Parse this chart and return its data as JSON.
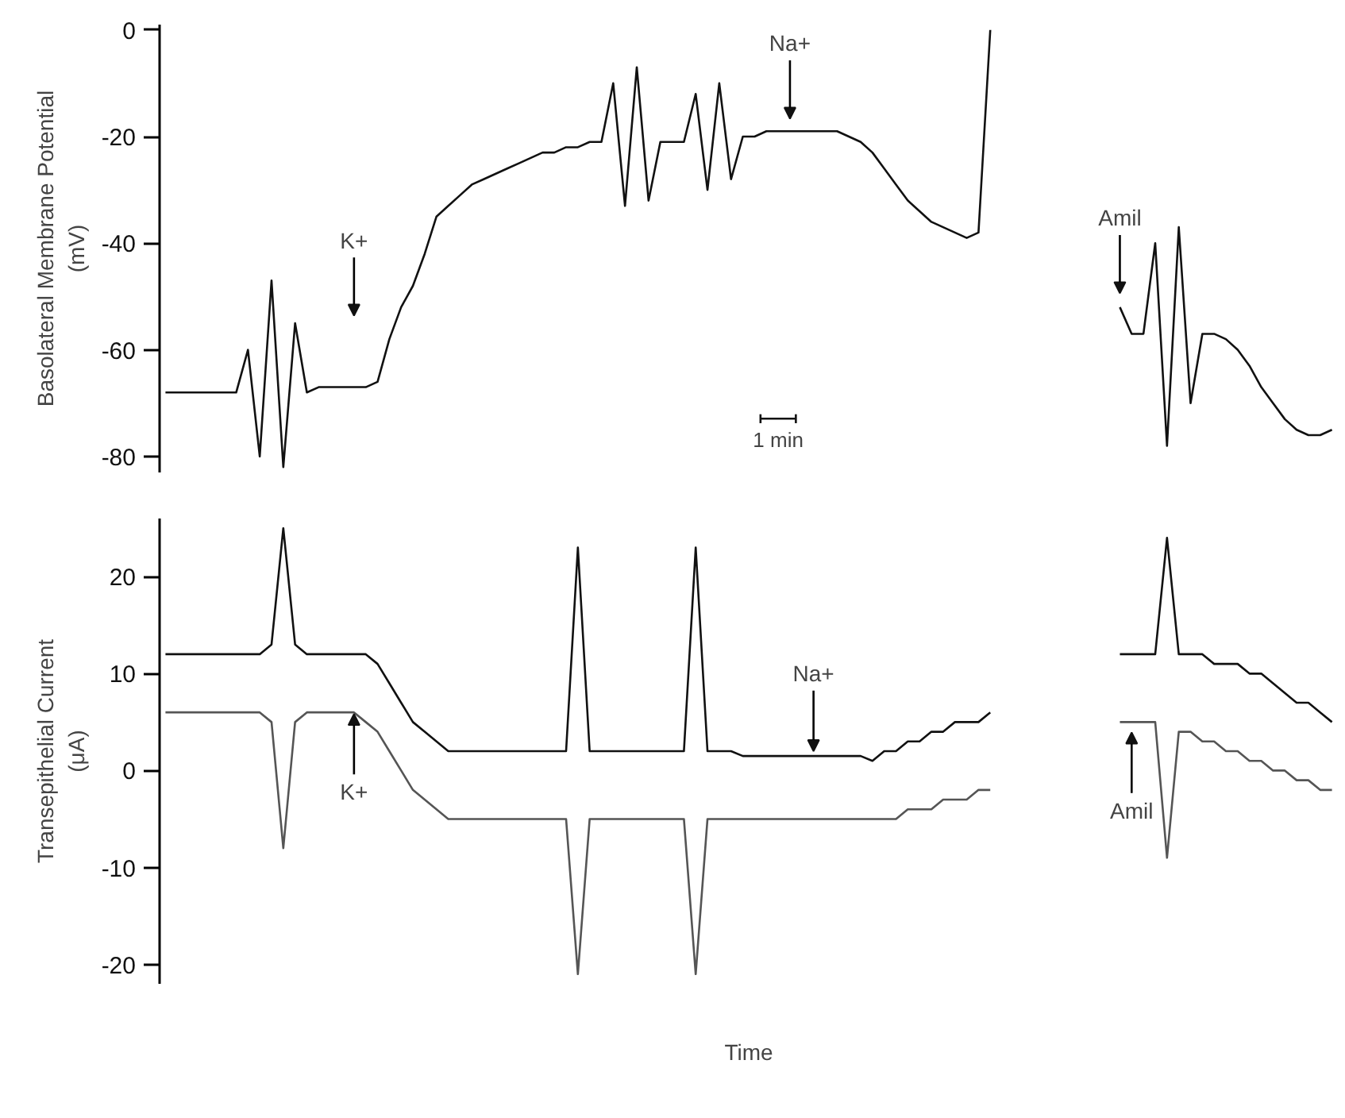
{
  "chart_data": [
    {
      "type": "line",
      "ylabel": "Basolateral Membrane Potential\n(mV)",
      "tick_labels": "y",
      "grid": false,
      "categories": [
        null,
        null,
        null,
        null,
        null,
        null,
        null,
        null,
        null,
        null,
        null,
        null,
        null,
        null,
        null,
        null,
        null,
        null,
        null,
        null,
        null,
        null,
        null,
        null,
        null,
        null,
        null,
        null,
        null,
        null,
        null,
        null,
        null,
        null,
        null,
        null,
        null,
        null,
        null,
        null,
        null,
        null,
        null,
        null,
        null,
        null,
        null,
        null,
        null,
        null,
        null,
        null,
        null,
        null,
        null,
        null,
        null,
        null,
        null,
        null,
        null,
        null,
        null,
        null,
        null,
        null,
        null,
        null,
        null,
        null,
        null,
        null,
        null,
        null,
        null,
        null,
        null,
        null,
        null,
        null,
        null,
        null,
        null,
        null,
        null,
        null,
        null,
        null,
        null,
        null,
        null,
        null,
        null,
        null,
        null,
        null,
        null,
        null,
        null,
        null
      ],
      "series": [
        {
          "color": "#111111",
          "values": [
            -68,
            -68,
            -68,
            -68,
            -68,
            -68,
            -68,
            -60,
            -80,
            -47,
            -82,
            -55,
            -68,
            -67,
            -67,
            -67,
            -67,
            -67,
            -66,
            -58,
            -52,
            -48,
            -42,
            -35,
            -33,
            -31,
            -29,
            -28,
            -27,
            -26,
            -25,
            -24,
            -23,
            -23,
            -22,
            -22,
            -21,
            -21,
            -10,
            -33,
            -7,
            -32,
            -21,
            -21,
            -21,
            -12,
            -30,
            -10,
            -28,
            -20,
            -20,
            -19,
            -19,
            -19,
            -19,
            -19,
            -19,
            -19,
            -20,
            -21,
            -23,
            -26,
            -29,
            -32,
            -34,
            -36,
            -37,
            -38,
            -39,
            -38,
            0,
            null,
            null,
            null,
            null,
            null,
            null,
            null,
            null,
            null,
            null,
            null,
            null,
            null,
            null,
            null,
            null,
            null,
            null,
            null,
            null,
            null,
            null,
            null,
            null,
            null,
            null,
            null,
            null,
            null
          ]
        },
        {
          "color": "#111111",
          "values": [
            null,
            null,
            null,
            null,
            null,
            null,
            null,
            null,
            null,
            null,
            null,
            null,
            null,
            null,
            null,
            null,
            null,
            null,
            null,
            null,
            null,
            null,
            null,
            null,
            null,
            null,
            null,
            null,
            null,
            null,
            null,
            null,
            null,
            null,
            null,
            null,
            null,
            null,
            null,
            null,
            null,
            null,
            null,
            null,
            null,
            null,
            null,
            null,
            null,
            null,
            null,
            null,
            null,
            null,
            null,
            null,
            null,
            null,
            null,
            null,
            null,
            null,
            null,
            null,
            null,
            null,
            null,
            null,
            null,
            null,
            null,
            null,
            null,
            null,
            null,
            null,
            null,
            null,
            null,
            null,
            null,
            -52,
            -57,
            -57,
            -40,
            -78,
            -37,
            -70,
            -57,
            -57,
            -58,
            -60,
            -63,
            -67,
            -70,
            -73,
            -75,
            -76,
            -76,
            -75
          ]
        }
      ],
      "ylim": [
        -83,
        1
      ],
      "yticks": [
        0,
        -20,
        -40,
        -60,
        -80
      ],
      "annotations": [
        "K+",
        "Na+",
        "Amil",
        "1 min"
      ]
    },
    {
      "type": "line",
      "ylabel": "Transepithelial Current\n(μA)",
      "xlabel": "Time",
      "tick_labels": "y",
      "grid": false,
      "categories": [
        null,
        null,
        null,
        null,
        null,
        null,
        null,
        null,
        null,
        null,
        null,
        null,
        null,
        null,
        null,
        null,
        null,
        null,
        null,
        null,
        null,
        null,
        null,
        null,
        null,
        null,
        null,
        null,
        null,
        null,
        null,
        null,
        null,
        null,
        null,
        null,
        null,
        null,
        null,
        null,
        null,
        null,
        null,
        null,
        null,
        null,
        null,
        null,
        null,
        null,
        null,
        null,
        null,
        null,
        null,
        null,
        null,
        null,
        null,
        null,
        null,
        null,
        null,
        null,
        null,
        null,
        null,
        null,
        null,
        null,
        null,
        null,
        null,
        null,
        null,
        null,
        null,
        null,
        null,
        null,
        null,
        null,
        null,
        null,
        null,
        null,
        null,
        null,
        null,
        null,
        null,
        null,
        null,
        null,
        null,
        null,
        null,
        null,
        null,
        null
      ],
      "series": [
        {
          "color": "#111111",
          "values": [
            12,
            12,
            12,
            12,
            12,
            12,
            12,
            12,
            12,
            13,
            25,
            13,
            12,
            12,
            12,
            12,
            12,
            12,
            11,
            9,
            7,
            5,
            4,
            3,
            2,
            2,
            2,
            2,
            2,
            2,
            2,
            2,
            2,
            2,
            2,
            23,
            2,
            2,
            2,
            2,
            2,
            2,
            2,
            2,
            2,
            23,
            2,
            2,
            2,
            1.5,
            1.5,
            1.5,
            1.5,
            1.5,
            1.5,
            1.5,
            1.5,
            1.5,
            1.5,
            1.5,
            1,
            2,
            2,
            3,
            3,
            4,
            4,
            5,
            5,
            5,
            6,
            null,
            null,
            null,
            null,
            null,
            null,
            null,
            null,
            null,
            null,
            null,
            null,
            null,
            null,
            null,
            null,
            null,
            null,
            null,
            null,
            null,
            null,
            null,
            null,
            null,
            null,
            null,
            null,
            null
          ]
        },
        {
          "color": "#111111",
          "values": [
            null,
            null,
            null,
            null,
            null,
            null,
            null,
            null,
            null,
            null,
            null,
            null,
            null,
            null,
            null,
            null,
            null,
            null,
            null,
            null,
            null,
            null,
            null,
            null,
            null,
            null,
            null,
            null,
            null,
            null,
            null,
            null,
            null,
            null,
            null,
            null,
            null,
            null,
            null,
            null,
            null,
            null,
            null,
            null,
            null,
            null,
            null,
            null,
            null,
            null,
            null,
            null,
            null,
            null,
            null,
            null,
            null,
            null,
            null,
            null,
            null,
            null,
            null,
            null,
            null,
            null,
            null,
            null,
            null,
            null,
            null,
            null,
            null,
            null,
            null,
            null,
            null,
            null,
            null,
            null,
            null,
            12,
            12,
            12,
            12,
            24,
            12,
            12,
            12,
            11,
            11,
            11,
            10,
            10,
            9,
            8,
            7,
            7,
            6,
            5
          ]
        },
        {
          "color": "#555555",
          "values": [
            6,
            6,
            6,
            6,
            6,
            6,
            6,
            6,
            6,
            5,
            -8,
            5,
            6,
            6,
            6,
            6,
            6,
            5,
            4,
            2,
            0,
            -2,
            -3,
            -4,
            -5,
            -5,
            -5,
            -5,
            -5,
            -5,
            -5,
            -5,
            -5,
            -5,
            -5,
            -21,
            -5,
            -5,
            -5,
            -5,
            -5,
            -5,
            -5,
            -5,
            -5,
            -21,
            -5,
            -5,
            -5,
            -5,
            -5,
            -5,
            -5,
            -5,
            -5,
            -5,
            -5,
            -5,
            -5,
            -5,
            -5,
            -5,
            -5,
            -4,
            -4,
            -4,
            -3,
            -3,
            -3,
            -2,
            -2,
            null,
            null,
            null,
            null,
            null,
            null,
            null,
            null,
            null,
            null,
            null,
            null,
            null,
            null,
            null,
            null,
            null,
            null,
            null,
            null,
            null,
            null,
            null,
            null,
            null,
            null,
            null,
            null,
            null
          ]
        },
        {
          "color": "#555555",
          "values": [
            null,
            null,
            null,
            null,
            null,
            null,
            null,
            null,
            null,
            null,
            null,
            null,
            null,
            null,
            null,
            null,
            null,
            null,
            null,
            null,
            null,
            null,
            null,
            null,
            null,
            null,
            null,
            null,
            null,
            null,
            null,
            null,
            null,
            null,
            null,
            null,
            null,
            null,
            null,
            null,
            null,
            null,
            null,
            null,
            null,
            null,
            null,
            null,
            null,
            null,
            null,
            null,
            null,
            null,
            null,
            null,
            null,
            null,
            null,
            null,
            null,
            null,
            null,
            null,
            null,
            null,
            null,
            null,
            null,
            null,
            null,
            null,
            null,
            null,
            null,
            null,
            null,
            null,
            null,
            null,
            null,
            5,
            5,
            5,
            5,
            -9,
            4,
            4,
            3,
            3,
            2,
            2,
            1,
            1,
            0,
            0,
            -1,
            -1,
            -2,
            -2
          ]
        }
      ],
      "ylim": [
        -22,
        26
      ],
      "yticks": [
        20,
        10,
        0,
        -10,
        -20
      ],
      "annotations": [
        "K+",
        "Na+",
        "Amil"
      ]
    }
  ]
}
